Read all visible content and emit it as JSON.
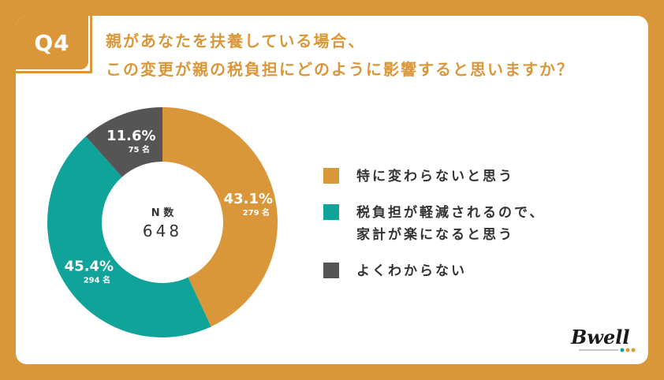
{
  "badge": "Q4",
  "question_lines": [
    "親があなたを扶養している場合、",
    "この変更が親の税負担にどのように影響すると思いますか？"
  ],
  "logo_text": "Bwell",
  "colors": {
    "accent": "#d9973a",
    "teal": "#0fa39a",
    "gray": "#555555"
  },
  "chart_data": {
    "type": "pie",
    "donut": true,
    "center_label": "N 数",
    "center_value": "648",
    "slices": [
      {
        "name": "特に変わらないと思う",
        "value": 43.1,
        "label": "43.1%",
        "count": "279 名",
        "color": "#d9973a"
      },
      {
        "name": "税負担が軽減されるので、家計が楽になると思う",
        "value": 45.4,
        "label": "45.4%",
        "count": "294 名",
        "color": "#0fa39a"
      },
      {
        "name": "よくわからない",
        "value": 11.6,
        "label": "11.6%",
        "count": "75 名",
        "color": "#555555"
      }
    ],
    "legend": [
      {
        "lines": [
          "特に変わらないと思う"
        ],
        "color": "#d9973a"
      },
      {
        "lines": [
          "税負担が軽減されるので、",
          "家計が楽になると思う"
        ],
        "color": "#0fa39a"
      },
      {
        "lines": [
          "よくわからない"
        ],
        "color": "#555555"
      }
    ],
    "legend_placement": "right"
  }
}
